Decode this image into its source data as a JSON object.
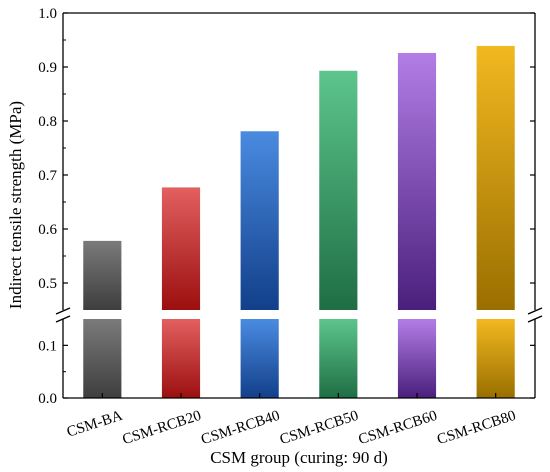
{
  "chart_data": {
    "type": "bar",
    "title": "",
    "xlabel": "CSM group (curing: 90 d)",
    "ylabel": "Indirect tensile strength (MPa)",
    "categories": [
      "CSM-BA",
      "CSM-RCB20",
      "CSM-RCB40",
      "CSM-RCB50",
      "CSM-RCB60",
      "CSM-RCB80"
    ],
    "values": [
      0.578,
      0.677,
      0.781,
      0.893,
      0.926,
      0.939
    ],
    "colors": [
      "#7a7a7a",
      "#e26060",
      "#4a8be0",
      "#5cc58c",
      "#b27ee6",
      "#f2b820"
    ],
    "dark_colors": [
      "#3e3e3e",
      "#9c0f0f",
      "#123f8a",
      "#1f6e44",
      "#4a1f7c",
      "#9a6f00"
    ],
    "axis_break": true,
    "ylim_lower": [
      0.0,
      0.15
    ],
    "ylim_upper": [
      0.45,
      1.0
    ],
    "yticks_lower": [
      "0.0",
      "0.1"
    ],
    "yticks_upper": [
      "0.5",
      "0.6",
      "0.7",
      "0.8",
      "0.9",
      "1.0"
    ],
    "grid": false,
    "legend": "none"
  }
}
